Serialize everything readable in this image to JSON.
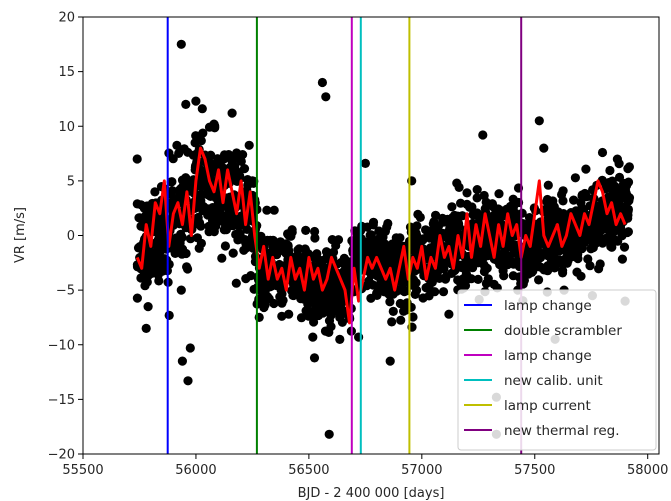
{
  "chart_data": {
    "type": "scatter",
    "title": "",
    "xlabel": "BJD - 2 400 000 [days]",
    "ylabel": "VR [m/s]",
    "xlim": [
      55500,
      58050
    ],
    "ylim": [
      -20,
      20
    ],
    "xticks": [
      55500,
      56000,
      56500,
      57000,
      57500,
      58000
    ],
    "yticks": [
      -20,
      -15,
      -10,
      -5,
      0,
      5,
      10,
      15,
      20
    ],
    "grid": false,
    "legend_position": "lower-right",
    "scatter_series": {
      "color": "#000000",
      "outliers": [
        [
          55780,
          -8.5
        ],
        [
          55935,
          17.5
        ],
        [
          55940,
          -11.5
        ],
        [
          55935,
          -5.0
        ],
        [
          55975,
          -10.3
        ],
        [
          55965,
          -13.3
        ],
        [
          55955,
          12.0
        ],
        [
          56000,
          12.3
        ],
        [
          56560,
          14.0
        ],
        [
          56575,
          12.7
        ],
        [
          56525,
          -11.2
        ],
        [
          56590,
          -18.2
        ],
        [
          56750,
          6.6
        ],
        [
          56860,
          -11.5
        ],
        [
          56955,
          5.0
        ],
        [
          56680,
          -7.5
        ],
        [
          56720,
          -9.3
        ],
        [
          57120,
          -7.2
        ],
        [
          57155,
          4.8
        ],
        [
          57245,
          4.2
        ],
        [
          57165,
          4.4
        ],
        [
          57200,
          3.9
        ],
        [
          57270,
          9.2
        ],
        [
          57330,
          -14.8
        ],
        [
          57330,
          -18.2
        ],
        [
          57520,
          10.5
        ],
        [
          57560,
          4.6
        ],
        [
          57540,
          8.0
        ],
        [
          57590,
          -9.5
        ],
        [
          57630,
          -5.0
        ],
        [
          57800,
          7.6
        ],
        [
          57755,
          -5.5
        ],
        [
          57900,
          -6.0
        ],
        [
          57425,
          -5.0
        ],
        [
          56160,
          11.2
        ],
        [
          56250,
          5.0
        ],
        [
          55740,
          7.0
        ],
        [
          56080,
          10.2
        ],
        [
          56280,
          -7.5
        ],
        [
          56380,
          -7.4
        ]
      ],
      "segments": [
        {
          "x": [
            55740,
            55880
          ],
          "center": [
            -2,
            1
          ],
          "spread": 4.6
        },
        {
          "x": [
            55880,
            56040
          ],
          "center": [
            1,
            5
          ],
          "spread": 4.8
        },
        {
          "x": [
            56040,
            56270
          ],
          "center": [
            5,
            1
          ],
          "spread": 4.8
        },
        {
          "x": [
            56270,
            56690
          ],
          "center": [
            -3,
            -5
          ],
          "spread": 3.6
        },
        {
          "x": [
            56690,
            56940
          ],
          "center": [
            -2,
            -3.5
          ],
          "spread": 3.4
        },
        {
          "x": [
            56940,
            57430
          ],
          "center": [
            -2.5,
            0.5
          ],
          "spread": 3.6
        },
        {
          "x": [
            57430,
            57920
          ],
          "center": [
            -1.5,
            2.5
          ],
          "spread": 3.8
        }
      ]
    },
    "line_series": {
      "color": "#ff0000",
      "points": [
        [
          55740,
          -2
        ],
        [
          55760,
          -3
        ],
        [
          55780,
          1
        ],
        [
          55800,
          -1
        ],
        [
          55820,
          3
        ],
        [
          55840,
          2
        ],
        [
          55860,
          5
        ],
        [
          55880,
          -1
        ],
        [
          55900,
          2
        ],
        [
          55920,
          3
        ],
        [
          55940,
          1
        ],
        [
          55960,
          4
        ],
        [
          55980,
          0
        ],
        [
          56000,
          5
        ],
        [
          56020,
          8
        ],
        [
          56040,
          7
        ],
        [
          56060,
          5
        ],
        [
          56080,
          4
        ],
        [
          56100,
          6
        ],
        [
          56120,
          3
        ],
        [
          56140,
          6
        ],
        [
          56160,
          4
        ],
        [
          56180,
          2
        ],
        [
          56200,
          5
        ],
        [
          56220,
          1
        ],
        [
          56240,
          4
        ],
        [
          56260,
          0
        ],
        [
          56280,
          -3
        ],
        [
          56300,
          -1
        ],
        [
          56320,
          -4
        ],
        [
          56340,
          -2
        ],
        [
          56360,
          -4
        ],
        [
          56380,
          -3
        ],
        [
          56400,
          -5
        ],
        [
          56420,
          -2
        ],
        [
          56440,
          -4
        ],
        [
          56460,
          -3
        ],
        [
          56480,
          -5
        ],
        [
          56500,
          -2
        ],
        [
          56520,
          -4
        ],
        [
          56540,
          -3
        ],
        [
          56560,
          -5
        ],
        [
          56580,
          -4
        ],
        [
          56600,
          -2
        ],
        [
          56620,
          -3
        ],
        [
          56640,
          -4
        ],
        [
          56660,
          -5
        ],
        [
          56680,
          -8
        ],
        [
          56700,
          -3
        ],
        [
          56720,
          -6
        ],
        [
          56740,
          -4
        ],
        [
          56760,
          -2
        ],
        [
          56780,
          -3
        ],
        [
          56800,
          -2
        ],
        [
          56820,
          -3
        ],
        [
          56840,
          -4
        ],
        [
          56860,
          -3
        ],
        [
          56880,
          -5
        ],
        [
          56900,
          -3
        ],
        [
          56920,
          -1
        ],
        [
          56940,
          -4
        ],
        [
          56960,
          -2
        ],
        [
          56980,
          -3
        ],
        [
          57000,
          -1
        ],
        [
          57020,
          -4
        ],
        [
          57040,
          -2
        ],
        [
          57060,
          -3
        ],
        [
          57080,
          0
        ],
        [
          57100,
          -2
        ],
        [
          57120,
          -1
        ],
        [
          57140,
          -3
        ],
        [
          57160,
          0
        ],
        [
          57180,
          -2
        ],
        [
          57200,
          2
        ],
        [
          57220,
          -2
        ],
        [
          57240,
          1
        ],
        [
          57260,
          -1
        ],
        [
          57280,
          2
        ],
        [
          57300,
          0
        ],
        [
          57320,
          -2
        ],
        [
          57340,
          1
        ],
        [
          57360,
          -1
        ],
        [
          57380,
          2
        ],
        [
          57400,
          0
        ],
        [
          57420,
          1
        ],
        [
          57440,
          -2
        ],
        [
          57460,
          0
        ],
        [
          57480,
          -1
        ],
        [
          57500,
          2
        ],
        [
          57520,
          5
        ],
        [
          57540,
          0
        ],
        [
          57560,
          -1
        ],
        [
          57580,
          0
        ],
        [
          57600,
          1
        ],
        [
          57620,
          -1
        ],
        [
          57640,
          0
        ],
        [
          57660,
          2
        ],
        [
          57680,
          1
        ],
        [
          57700,
          0
        ],
        [
          57720,
          2
        ],
        [
          57740,
          1
        ],
        [
          57760,
          3
        ],
        [
          57780,
          5
        ],
        [
          57800,
          4
        ],
        [
          57820,
          2
        ],
        [
          57840,
          3
        ],
        [
          57860,
          1
        ],
        [
          57880,
          2
        ],
        [
          57900,
          1
        ]
      ]
    },
    "vlines": [
      {
        "label": "lamp change",
        "x": 55875,
        "color": "#0000ff"
      },
      {
        "label": "double scrambler",
        "x": 56270,
        "color": "#008000"
      },
      {
        "label": "lamp change",
        "x": 56690,
        "color": "#bf00bf"
      },
      {
        "label": "new calib. unit",
        "x": 56730,
        "color": "#00bfbf"
      },
      {
        "label": "lamp current",
        "x": 56945,
        "color": "#bfbf00"
      },
      {
        "label": "new thermal reg.",
        "x": 57440,
        "color": "#800080"
      }
    ]
  }
}
